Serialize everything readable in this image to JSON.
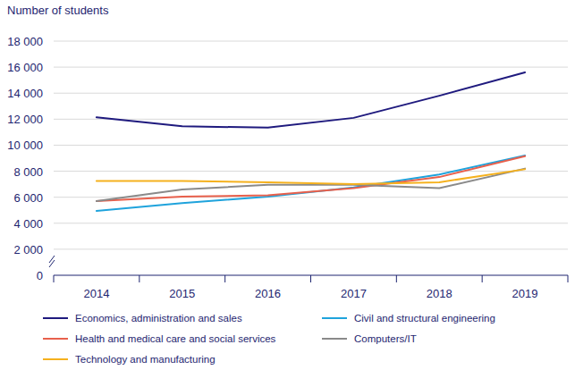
{
  "chart_data": {
    "type": "line",
    "y_label": "Number of students",
    "categories": [
      "2014",
      "2015",
      "2016",
      "2017",
      "2018",
      "2019"
    ],
    "series": [
      {
        "name": "Economics, administration and sales",
        "color": "#1f1a7e",
        "values": [
          12150,
          11450,
          11350,
          12100,
          13800,
          15600
        ]
      },
      {
        "name": "Civil and structural engineering",
        "color": "#1fa3dc",
        "values": [
          4950,
          5550,
          6050,
          6750,
          7750,
          9200
        ]
      },
      {
        "name": "Health and medical care and social services",
        "color": "#e8604c",
        "values": [
          5700,
          6050,
          6150,
          6700,
          7550,
          9150
        ]
      },
      {
        "name": "Computers/IT",
        "color": "#8a8a8a",
        "values": [
          5700,
          6600,
          6950,
          6950,
          6700,
          8200
        ]
      },
      {
        "name": "Technology and manufacturing",
        "color": "#f5b11e",
        "values": [
          7250,
          7250,
          7150,
          7000,
          7150,
          8150
        ]
      }
    ],
    "ylim": [
      0,
      18000
    ],
    "yticks": [
      0,
      {
        "value": 2000,
        "label": "2 000"
      },
      {
        "value": 4000,
        "label": "4 000"
      },
      {
        "value": 6000,
        "label": "6 000"
      },
      {
        "value": 8000,
        "label": "8 000"
      },
      {
        "value": 10000,
        "label": "10 000"
      },
      {
        "value": 12000,
        "label": "12 000"
      },
      {
        "value": 14000,
        "label": "14 000"
      },
      {
        "value": 16000,
        "label": "16 000"
      },
      {
        "value": 18000,
        "label": "18 000"
      }
    ],
    "grid": true,
    "legend": "bottom"
  }
}
